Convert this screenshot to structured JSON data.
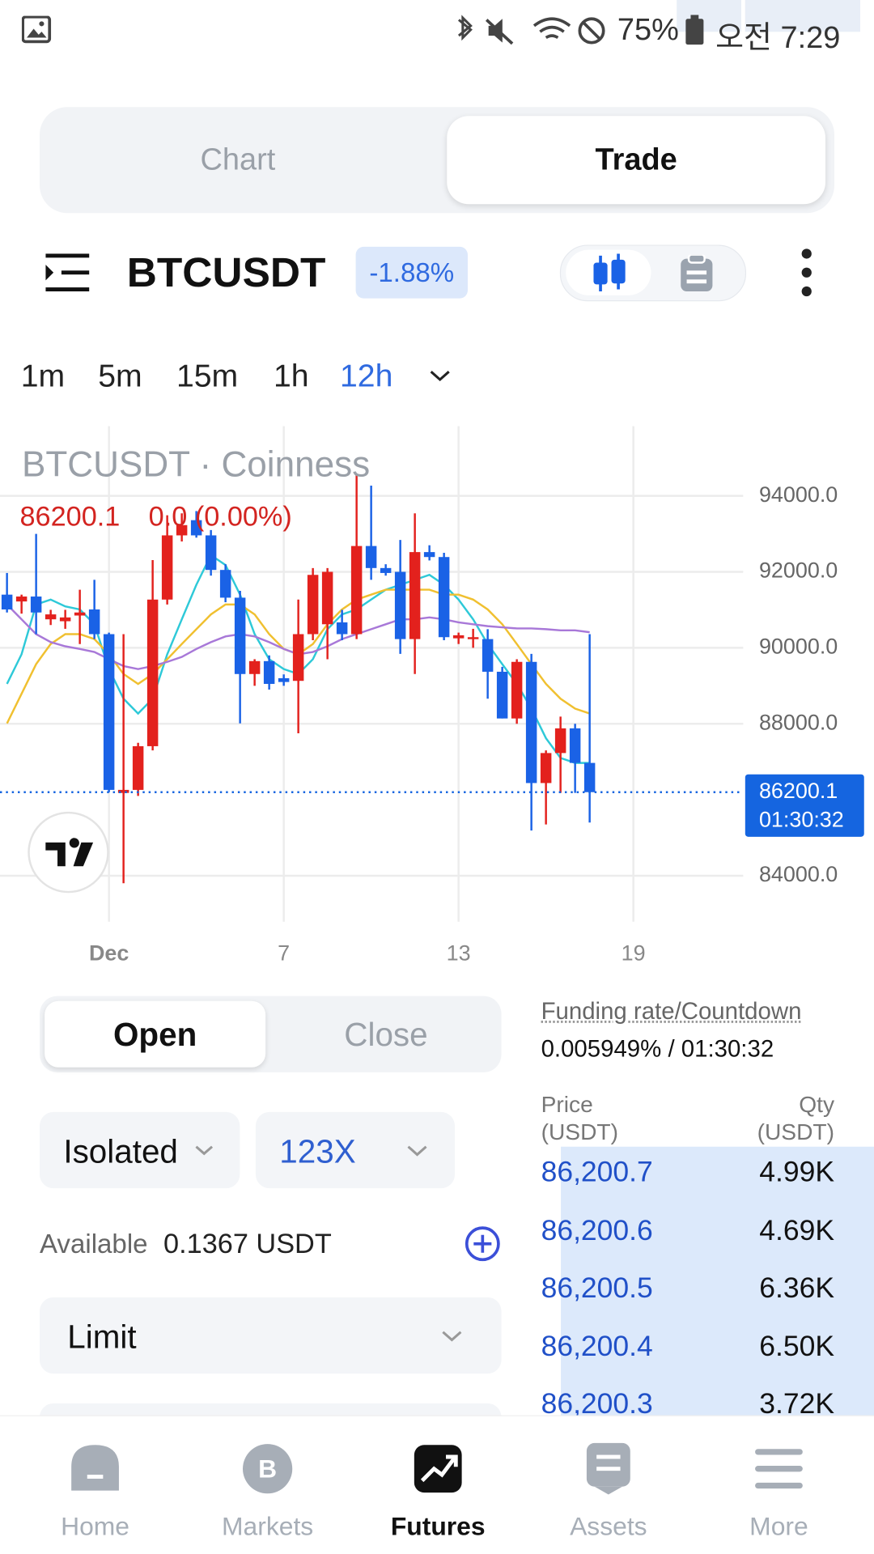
{
  "status_bar": {
    "battery": "75%",
    "time": "오전 7:29"
  },
  "tabs": [
    "Chart",
    "Trade"
  ],
  "header": {
    "symbol": "BTCUSDT",
    "change": "-1.88%"
  },
  "intervals": [
    "1m",
    "5m",
    "15m",
    "1h",
    "12h"
  ],
  "chart_data": {
    "type": "candlestick",
    "title": "BTCUSDT · Coinness",
    "change_text": "0.0 (0.00%)",
    "current_price": 86200.1,
    "countdown": "01:30:32",
    "high": [
      91970,
      91400,
      93000,
      91000,
      91000,
      91530,
      91790,
      90400,
      90360,
      87500,
      92310,
      93490,
      93540,
      93600,
      93100,
      92200,
      91500,
      89700,
      89800,
      89300,
      91270,
      92100,
      92100,
      91000,
      94552,
      94270,
      92200,
      92840,
      93540,
      92700,
      92500,
      90400,
      90500,
      90490,
      89500,
      89700,
      89840,
      87300,
      88190,
      88000,
      90360
    ],
    "low": [
      90930,
      90900,
      90360,
      90600,
      90500,
      90100,
      90230,
      86200,
      83802,
      86100,
      87300,
      91140,
      92800,
      92900,
      91900,
      91200,
      88010,
      89000,
      88900,
      89000,
      87750,
      90200,
      89700,
      90200,
      90230,
      91790,
      91900,
      89840,
      89310,
      92300,
      90200,
      90100,
      90000,
      88660,
      88140,
      88000,
      85190,
      85350,
      86180,
      86180,
      85400
    ],
    "up_color": "#e3211d",
    "down_color": "#1a62e6",
    "x": [
      -2.5,
      -2,
      -1.5,
      -1,
      -0.5,
      0,
      0.5,
      1,
      1.5,
      2,
      2.5,
      3,
      3.5,
      4,
      4.5,
      5,
      5.5,
      6,
      6.5,
      7,
      7.5,
      8,
      8.5,
      9,
      9.5,
      10,
      10.5,
      11,
      11.5,
      12,
      12.5,
      13,
      13.5,
      14,
      14.5,
      15,
      15.5,
      16,
      16.5,
      17,
      17.5
    ],
    "open": [
      91400,
      91220,
      91350,
      90750,
      90700,
      90850,
      91010,
      90360,
      86180,
      86260,
      87410,
      91270,
      92960,
      93360,
      92960,
      92050,
      91320,
      89310,
      89650,
      89200,
      89130,
      90360,
      90620,
      90670,
      90360,
      92680,
      92100,
      92000,
      90230,
      92520,
      92390,
      90250,
      90230,
      90230,
      89370,
      88140,
      89630,
      86440,
      87230,
      87880,
      86970
    ],
    "close": [
      91010,
      91350,
      90930,
      90880,
      90800,
      90930,
      90360,
      86260,
      86260,
      87410,
      91270,
      92960,
      93230,
      92960,
      92050,
      91320,
      89310,
      89650,
      89050,
      89100,
      90360,
      91920,
      92000,
      90360,
      92680,
      92100,
      91970,
      90230,
      92520,
      92390,
      90280,
      90330,
      90280,
      89370,
      88140,
      89630,
      86440,
      87230,
      87880,
      86970,
      86200
    ],
    "series": [
      {
        "color": "#2ec9d8",
        "values": [
          89050,
          89830,
          91140,
          91270,
          91090,
          91010,
          90620,
          89440,
          88660,
          88270,
          88660,
          89830,
          90750,
          91660,
          92440,
          92180,
          91400,
          90360,
          89700,
          89440,
          89310,
          89700,
          90490,
          90880,
          91010,
          91270,
          91530,
          91660,
          91790,
          91920,
          91660,
          91270,
          90750,
          90100,
          89570,
          89050,
          88400,
          87620,
          87100,
          86970,
          86970
        ]
      },
      {
        "color": "#f0c030",
        "values": [
          88010,
          88790,
          89570,
          90100,
          90360,
          90360,
          90230,
          89830,
          89310,
          89050,
          89310,
          89700,
          90100,
          90490,
          90880,
          91140,
          91140,
          90880,
          90360,
          89970,
          89830,
          90100,
          90620,
          91010,
          91270,
          91400,
          91530,
          91530,
          91530,
          91530,
          91400,
          91400,
          91270,
          91010,
          90620,
          90100,
          89570,
          89050,
          88660,
          88400,
          88270
        ]
      },
      {
        "color": "#a878d8",
        "values": [
          91140,
          90750,
          90360,
          90150,
          90040,
          89970,
          89890,
          89700,
          89520,
          89440,
          89520,
          89630,
          89760,
          89970,
          90150,
          90300,
          90360,
          90300,
          90150,
          89970,
          89830,
          89890,
          90040,
          90230,
          90360,
          90490,
          90620,
          90750,
          90750,
          90800,
          90750,
          90670,
          90620,
          90570,
          90540,
          90510,
          90510,
          90490,
          90460,
          90460,
          90410
        ]
      }
    ],
    "xlim": [
      -2.74,
      22.77
    ],
    "ylim": [
      82790,
      95835
    ],
    "xticks": [
      {
        "value": 1,
        "label": "Dec"
      },
      7,
      13,
      19
    ],
    "yticks": [
      {
        "value": 84000,
        "label": "84000.0"
      },
      {
        "value": 88000,
        "label": "88000.0"
      },
      {
        "value": 90000,
        "label": "90000.0"
      },
      {
        "value": 92000,
        "label": "92000.0"
      },
      {
        "value": 94000,
        "label": "94000.0"
      }
    ],
    "grid": true
  },
  "order_form": {
    "tabs": [
      "Open",
      "Close"
    ],
    "margin_mode": "Isolated",
    "leverage": "123X",
    "available_label": "Available",
    "available_value": "0.1367 USDT",
    "order_type": "Limit"
  },
  "funding": {
    "label": "Funding rate/Countdown",
    "value": "0.005949% / 01:30:32"
  },
  "order_book": {
    "price_header": [
      "Price",
      "(USDT)"
    ],
    "qty_header": [
      "Qty",
      "(USDT)"
    ],
    "rows": [
      [
        "86,200.7",
        "4.99K"
      ],
      [
        "86,200.6",
        "4.69K"
      ],
      [
        "86,200.5",
        "6.36K"
      ],
      [
        "86,200.4",
        "6.50K"
      ],
      [
        "86,200.3",
        "3.72K"
      ]
    ]
  },
  "nav": [
    "Home",
    "Markets",
    "Futures",
    "Assets",
    "More"
  ]
}
